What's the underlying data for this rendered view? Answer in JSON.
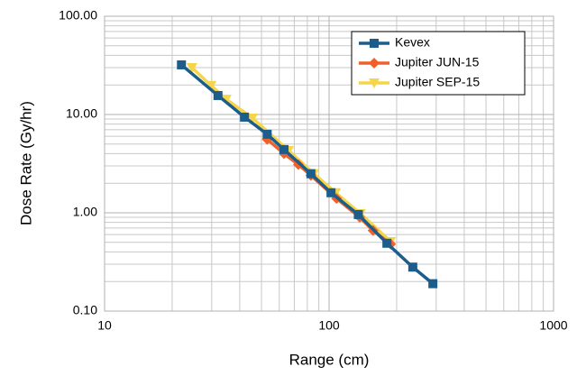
{
  "chart_data": {
    "type": "line",
    "x_label": "Range (cm)",
    "y_label": "Dose Rate (Gy/hr)",
    "xscale": "log",
    "yscale": "log",
    "grid": true,
    "legend": "upper right",
    "xlim": [
      10,
      1000
    ],
    "xticks": [
      10,
      100,
      1000
    ],
    "ylim": [
      0.1,
      100
    ],
    "yticks": [
      {
        "value": 0.1,
        "label": "0.10"
      },
      {
        "value": 1,
        "label": "1.00"
      },
      {
        "value": 10,
        "label": "10.00"
      },
      {
        "value": 100,
        "label": "100.00"
      }
    ],
    "series": [
      {
        "name": "Kevex",
        "color": "#1c5d8c",
        "marker": "square",
        "x": [
          22,
          32,
          42,
          53,
          63,
          83,
          102,
          135,
          181,
          236,
          290
        ],
        "values": [
          32,
          15.6,
          9.4,
          6.3,
          4.4,
          2.5,
          1.6,
          0.96,
          0.49,
          0.28,
          0.19
        ]
      },
      {
        "name": "Jupiter JUN-15",
        "color": "#f0602a",
        "marker": "diamond",
        "x": [
          53,
          63,
          73,
          83,
          108,
          137,
          157,
          188
        ],
        "values": [
          5.6,
          4.0,
          3.1,
          2.4,
          1.4,
          0.9,
          0.66,
          0.48
        ]
      },
      {
        "name": "Jupiter SEP-15",
        "color": "#f5d54a",
        "marker": "triangle",
        "x": [
          24.5,
          29.8,
          34.8,
          45.6,
          66,
          85.5,
          107,
          138,
          188
        ],
        "values": [
          30,
          19.7,
          14.3,
          9.2,
          4.3,
          2.5,
          1.6,
          0.98,
          0.51
        ]
      }
    ]
  }
}
